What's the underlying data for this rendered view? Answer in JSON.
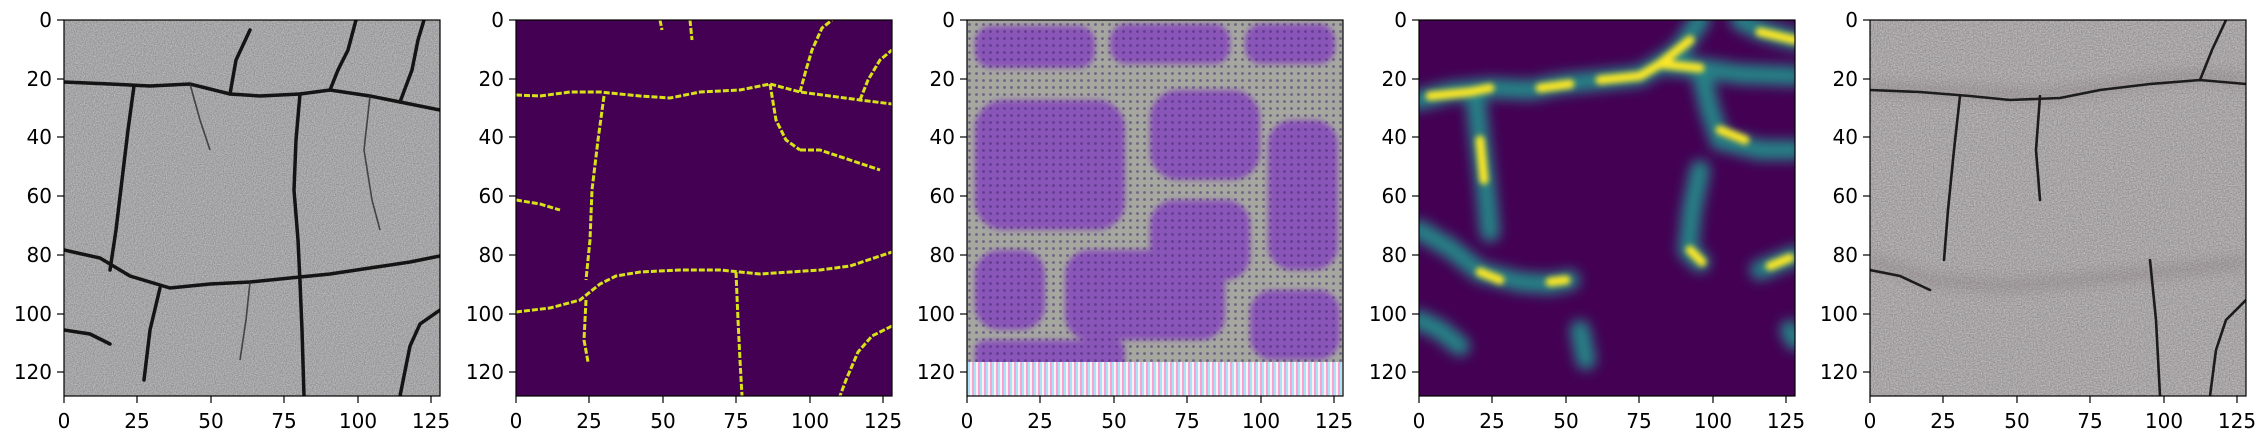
{
  "panels": [
    {
      "id": "photo",
      "content": "asphalt-crack-photo",
      "x_ticks": [
        "0",
        "25",
        "50",
        "75",
        "100",
        "125"
      ],
      "y_ticks": [
        "0",
        "20",
        "40",
        "60",
        "80",
        "100",
        "120"
      ]
    },
    {
      "id": "ground-truth-mask",
      "content": "binary-crack-mask",
      "colors": {
        "background": "#440154",
        "crack": "#d8e219"
      },
      "x_ticks": [
        "0",
        "25",
        "50",
        "75",
        "100",
        "125"
      ],
      "y_ticks": [
        "0",
        "20",
        "40",
        "60",
        "80",
        "100",
        "120"
      ]
    },
    {
      "id": "feature-visualization",
      "content": "purple-checkerboard-feature-map",
      "colors": {
        "cells": "#8a55b8",
        "borders": "#a6a8a0",
        "bottom_band": "#f2e6ee"
      },
      "x_ticks": [
        "0",
        "25",
        "50",
        "75",
        "100",
        "125"
      ],
      "y_ticks": [
        "0",
        "20",
        "40",
        "60",
        "80",
        "100",
        "120"
      ]
    },
    {
      "id": "predicted-heatmap",
      "content": "blurred-crack-probability-map",
      "colors": {
        "background": "#440154",
        "mid": "#21918c",
        "high": "#fde725"
      },
      "x_ticks": [
        "0",
        "25",
        "50",
        "75",
        "100",
        "125"
      ],
      "y_ticks": [
        "0",
        "20",
        "40",
        "60",
        "80",
        "100",
        "120"
      ]
    },
    {
      "id": "photo-reconstruction",
      "content": "asphalt-photo-with-faint-overlay",
      "x_ticks": [
        "0",
        "25",
        "50",
        "75",
        "100",
        "125"
      ],
      "y_ticks": [
        "0",
        "20",
        "40",
        "60",
        "80",
        "100",
        "120"
      ]
    }
  ]
}
